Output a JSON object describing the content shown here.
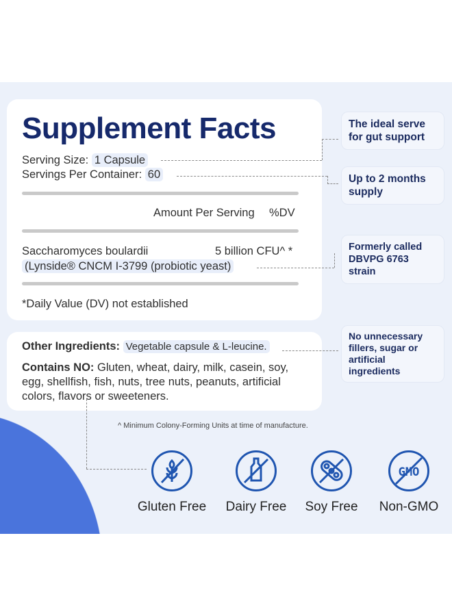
{
  "facts": {
    "title": "Supplement Facts",
    "serving_size_label": "Serving Size:",
    "serving_size": "1 Capsule",
    "servings_label": "Servings Per Container:",
    "servings": "60",
    "amount_header": "Amount Per Serving",
    "dv_header": "%DV",
    "ingredient": "Saccharomyces boulardii",
    "ingredient_amount": "5 billion CFU^ *",
    "ingredient_detail": "(Lynside® CNCM I-3799 (probiotic yeast)",
    "dv_note": "*Daily Value (DV) not established"
  },
  "other": {
    "label": "Other Ingredients:",
    "value": "Vegetable capsule & L-leucine.",
    "contains_label": "Contains NO:",
    "contains_line1": "Gluten, wheat, dairy, milk, casein, soy,",
    "contains_line2": "egg, shellfish, fish, nuts, tree nuts, peanuts, artificial",
    "contains_line3": "colors, flavors or sweeteners."
  },
  "footnote": "^ Minimum Colony-Forming Units at time of manufacture.",
  "callouts": [
    "The ideal serve for gut support",
    "Up to 2 months supply",
    "Formerly called DBVPG 6763 strain",
    "No unnecessary fillers, sugar or artificial ingredients"
  ],
  "badges": [
    {
      "label": "Gluten Free",
      "icon": "wheat-crossed-icon"
    },
    {
      "label": "Dairy Free",
      "icon": "milk-bottle-crossed-icon"
    },
    {
      "label": "Soy Free",
      "icon": "soybean-crossed-icon"
    },
    {
      "label": "Non-GMO",
      "icon": "gmo-crossed-icon",
      "text": "GMO"
    }
  ],
  "colors": {
    "navy": "#16296b",
    "accent": "#1f55b0",
    "blob": "#4a74dc",
    "background": "#ecf1fa"
  }
}
